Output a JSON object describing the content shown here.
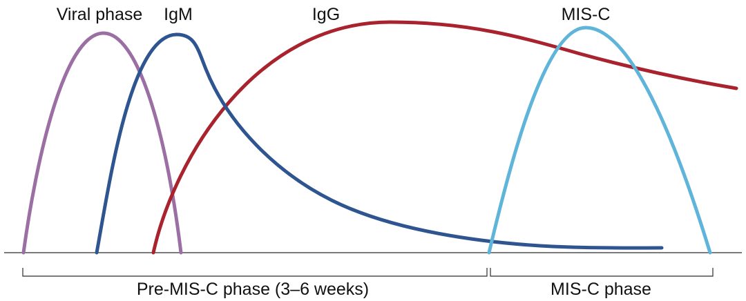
{
  "labels": {
    "viral": "Viral phase",
    "igm": "IgM",
    "igg": "IgG",
    "misc": "MIS-C"
  },
  "phases": {
    "pre": "Pre-MIS-C phase (3–6 weeks)",
    "misc": "MIS-C phase"
  },
  "colors": {
    "viral": "#9b6fa3",
    "igm": "#2e5590",
    "igg": "#a8232e",
    "misc": "#5fb4d9",
    "axis": "#2b2b2b"
  }
}
